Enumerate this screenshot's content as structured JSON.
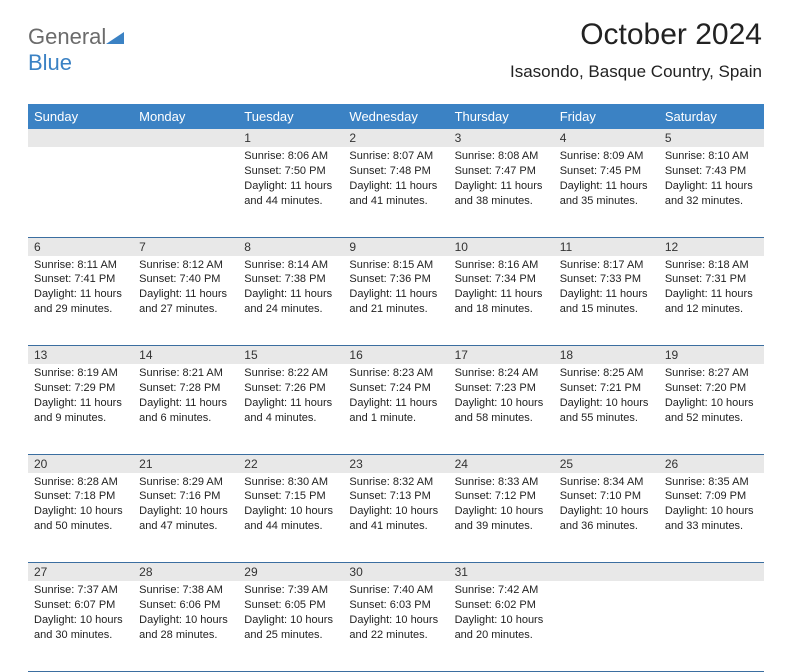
{
  "brand": {
    "part1": "General",
    "part2": "Blue"
  },
  "title": "October 2024",
  "location": "Isasondo, Basque Country, Spain",
  "colors": {
    "header_bg": "#3b82c4",
    "header_fg": "#ffffff",
    "daynum_bg": "#e8e8e8",
    "row_border": "#3b6ea0",
    "logo_gray": "#6b6b6b",
    "logo_blue": "#3b82c4"
  },
  "day_headers": [
    "Sunday",
    "Monday",
    "Tuesday",
    "Wednesday",
    "Thursday",
    "Friday",
    "Saturday"
  ],
  "weeks": [
    [
      null,
      null,
      {
        "n": "1",
        "sr": "8:06 AM",
        "ss": "7:50 PM",
        "dl": "11 hours and 44 minutes."
      },
      {
        "n": "2",
        "sr": "8:07 AM",
        "ss": "7:48 PM",
        "dl": "11 hours and 41 minutes."
      },
      {
        "n": "3",
        "sr": "8:08 AM",
        "ss": "7:47 PM",
        "dl": "11 hours and 38 minutes."
      },
      {
        "n": "4",
        "sr": "8:09 AM",
        "ss": "7:45 PM",
        "dl": "11 hours and 35 minutes."
      },
      {
        "n": "5",
        "sr": "8:10 AM",
        "ss": "7:43 PM",
        "dl": "11 hours and 32 minutes."
      }
    ],
    [
      {
        "n": "6",
        "sr": "8:11 AM",
        "ss": "7:41 PM",
        "dl": "11 hours and 29 minutes."
      },
      {
        "n": "7",
        "sr": "8:12 AM",
        "ss": "7:40 PM",
        "dl": "11 hours and 27 minutes."
      },
      {
        "n": "8",
        "sr": "8:14 AM",
        "ss": "7:38 PM",
        "dl": "11 hours and 24 minutes."
      },
      {
        "n": "9",
        "sr": "8:15 AM",
        "ss": "7:36 PM",
        "dl": "11 hours and 21 minutes."
      },
      {
        "n": "10",
        "sr": "8:16 AM",
        "ss": "7:34 PM",
        "dl": "11 hours and 18 minutes."
      },
      {
        "n": "11",
        "sr": "8:17 AM",
        "ss": "7:33 PM",
        "dl": "11 hours and 15 minutes."
      },
      {
        "n": "12",
        "sr": "8:18 AM",
        "ss": "7:31 PM",
        "dl": "11 hours and 12 minutes."
      }
    ],
    [
      {
        "n": "13",
        "sr": "8:19 AM",
        "ss": "7:29 PM",
        "dl": "11 hours and 9 minutes."
      },
      {
        "n": "14",
        "sr": "8:21 AM",
        "ss": "7:28 PM",
        "dl": "11 hours and 6 minutes."
      },
      {
        "n": "15",
        "sr": "8:22 AM",
        "ss": "7:26 PM",
        "dl": "11 hours and 4 minutes."
      },
      {
        "n": "16",
        "sr": "8:23 AM",
        "ss": "7:24 PM",
        "dl": "11 hours and 1 minute."
      },
      {
        "n": "17",
        "sr": "8:24 AM",
        "ss": "7:23 PM",
        "dl": "10 hours and 58 minutes."
      },
      {
        "n": "18",
        "sr": "8:25 AM",
        "ss": "7:21 PM",
        "dl": "10 hours and 55 minutes."
      },
      {
        "n": "19",
        "sr": "8:27 AM",
        "ss": "7:20 PM",
        "dl": "10 hours and 52 minutes."
      }
    ],
    [
      {
        "n": "20",
        "sr": "8:28 AM",
        "ss": "7:18 PM",
        "dl": "10 hours and 50 minutes."
      },
      {
        "n": "21",
        "sr": "8:29 AM",
        "ss": "7:16 PM",
        "dl": "10 hours and 47 minutes."
      },
      {
        "n": "22",
        "sr": "8:30 AM",
        "ss": "7:15 PM",
        "dl": "10 hours and 44 minutes."
      },
      {
        "n": "23",
        "sr": "8:32 AM",
        "ss": "7:13 PM",
        "dl": "10 hours and 41 minutes."
      },
      {
        "n": "24",
        "sr": "8:33 AM",
        "ss": "7:12 PM",
        "dl": "10 hours and 39 minutes."
      },
      {
        "n": "25",
        "sr": "8:34 AM",
        "ss": "7:10 PM",
        "dl": "10 hours and 36 minutes."
      },
      {
        "n": "26",
        "sr": "8:35 AM",
        "ss": "7:09 PM",
        "dl": "10 hours and 33 minutes."
      }
    ],
    [
      {
        "n": "27",
        "sr": "7:37 AM",
        "ss": "6:07 PM",
        "dl": "10 hours and 30 minutes."
      },
      {
        "n": "28",
        "sr": "7:38 AM",
        "ss": "6:06 PM",
        "dl": "10 hours and 28 minutes."
      },
      {
        "n": "29",
        "sr": "7:39 AM",
        "ss": "6:05 PM",
        "dl": "10 hours and 25 minutes."
      },
      {
        "n": "30",
        "sr": "7:40 AM",
        "ss": "6:03 PM",
        "dl": "10 hours and 22 minutes."
      },
      {
        "n": "31",
        "sr": "7:42 AM",
        "ss": "6:02 PM",
        "dl": "10 hours and 20 minutes."
      },
      null,
      null
    ]
  ],
  "labels": {
    "sunrise": "Sunrise:",
    "sunset": "Sunset:",
    "daylight": "Daylight:"
  }
}
